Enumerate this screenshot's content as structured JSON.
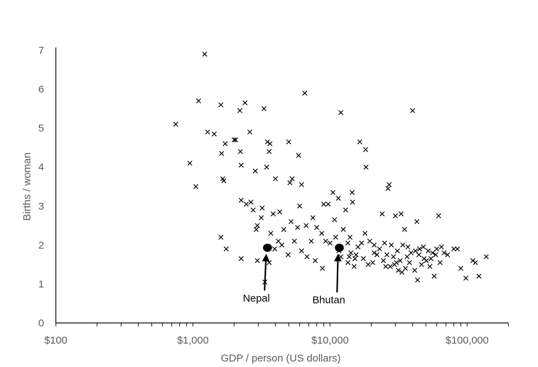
{
  "chart_data": {
    "type": "scatter",
    "title": "",
    "xlabel": "GDP / person (US dollars)",
    "ylabel": "Births / woman",
    "x_scale": "log",
    "xlim": [
      100,
      200000
    ],
    "ylim": [
      0,
      7
    ],
    "x_ticks": [
      {
        "value": 100,
        "label": "$100"
      },
      {
        "value": 1000,
        "label": "$1,000"
      },
      {
        "value": 10000,
        "label": "$10,000"
      },
      {
        "value": 100000,
        "label": "$100,000"
      }
    ],
    "y_ticks": [
      {
        "value": 0,
        "label": "0"
      },
      {
        "value": 1,
        "label": "1"
      },
      {
        "value": 2,
        "label": "2"
      },
      {
        "value": 3,
        "label": "3"
      },
      {
        "value": 4,
        "label": "4"
      },
      {
        "value": 5,
        "label": "5"
      },
      {
        "value": 6,
        "label": "6"
      },
      {
        "value": 7,
        "label": "7"
      }
    ],
    "grid": false,
    "legend": "none",
    "marker_color": "#000000",
    "axis_color": "#000000",
    "label_color": "#595959",
    "points": [
      [
        750,
        5.1
      ],
      [
        950,
        4.1
      ],
      [
        1050,
        3.5
      ],
      [
        1100,
        5.7
      ],
      [
        1220,
        6.9
      ],
      [
        1280,
        4.9
      ],
      [
        1430,
        4.85
      ],
      [
        1600,
        5.6
      ],
      [
        1620,
        4.35
      ],
      [
        1650,
        3.7
      ],
      [
        1680,
        3.65
      ],
      [
        1720,
        4.6
      ],
      [
        2000,
        4.7
      ],
      [
        2050,
        4.7
      ],
      [
        2200,
        5.45
      ],
      [
        2220,
        4.4
      ],
      [
        2250,
        4.05
      ],
      [
        2400,
        5.65
      ],
      [
        2600,
        4.9
      ],
      [
        2850,
        3.9
      ],
      [
        2950,
        2.5
      ],
      [
        3150,
        2.7
      ],
      [
        3300,
        5.5
      ],
      [
        3450,
        4.0
      ],
      [
        3500,
        4.65
      ],
      [
        3600,
        4.4
      ],
      [
        3650,
        4.6
      ],
      [
        3850,
        2.8
      ],
      [
        4000,
        3.7
      ],
      [
        4300,
        2.85
      ],
      [
        5000,
        4.65
      ],
      [
        5100,
        3.6
      ],
      [
        5300,
        3.7
      ],
      [
        5900,
        4.3
      ],
      [
        6200,
        3.55
      ],
      [
        6000,
        3.0
      ],
      [
        6550,
        5.9
      ],
      [
        7500,
        2.7
      ],
      [
        9000,
        3.05
      ],
      [
        9700,
        3.05
      ],
      [
        10500,
        3.35
      ],
      [
        10800,
        2.65
      ],
      [
        11500,
        3.2
      ],
      [
        12000,
        5.4
      ],
      [
        13000,
        2.9
      ],
      [
        14500,
        3.35
      ],
      [
        14600,
        3.1
      ],
      [
        16500,
        4.65
      ],
      [
        18200,
        4.45
      ],
      [
        18300,
        4.0
      ],
      [
        24000,
        2.8
      ],
      [
        27000,
        3.55
      ],
      [
        26500,
        3.45
      ],
      [
        30000,
        2.75
      ],
      [
        33000,
        2.8
      ],
      [
        35000,
        2.4
      ],
      [
        40000,
        5.45
      ],
      [
        43000,
        2.6
      ],
      [
        62000,
        2.75
      ],
      [
        2250,
        3.15
      ],
      [
        2450,
        3.05
      ],
      [
        2650,
        3.1
      ],
      [
        2750,
        2.9
      ],
      [
        3200,
        2.95
      ],
      [
        2900,
        2.4
      ],
      [
        3700,
        2.3
      ],
      [
        4200,
        2.1
      ],
      [
        4600,
        2.4
      ],
      [
        5200,
        2.6
      ],
      [
        5500,
        2.1
      ],
      [
        5800,
        2.45
      ],
      [
        6700,
        2.5
      ],
      [
        7300,
        2.1
      ],
      [
        8000,
        2.45
      ],
      [
        8700,
        2.3
      ],
      [
        9300,
        2.1
      ],
      [
        10000,
        2.05
      ],
      [
        11000,
        2.2
      ],
      [
        12500,
        2.4
      ],
      [
        13500,
        2.05
      ],
      [
        14000,
        2.2
      ],
      [
        16000,
        1.95
      ],
      [
        17000,
        2.05
      ],
      [
        18000,
        2.3
      ],
      [
        19500,
        2.1
      ],
      [
        21000,
        2.0
      ],
      [
        23000,
        1.9
      ],
      [
        25000,
        2.05
      ],
      [
        28000,
        2.0
      ],
      [
        31000,
        1.85
      ],
      [
        34000,
        2.0
      ],
      [
        37000,
        1.95
      ],
      [
        39000,
        1.8
      ],
      [
        42000,
        1.85
      ],
      [
        45000,
        1.9
      ],
      [
        48000,
        1.95
      ],
      [
        52000,
        1.85
      ],
      [
        56000,
        1.8
      ],
      [
        60000,
        1.9
      ],
      [
        65000,
        1.95
      ],
      [
        72000,
        1.75
      ],
      [
        80000,
        1.9
      ],
      [
        85000,
        1.9
      ],
      [
        90000,
        1.4
      ],
      [
        98000,
        1.15
      ],
      [
        110000,
        1.6
      ],
      [
        115000,
        1.55
      ],
      [
        122000,
        1.2
      ],
      [
        138000,
        1.7
      ],
      [
        1600,
        2.2
      ],
      [
        1750,
        1.9
      ],
      [
        2250,
        1.65
      ],
      [
        2950,
        1.6
      ],
      [
        3350,
        1.05
      ],
      [
        3600,
        1.55
      ],
      [
        3950,
        1.9
      ],
      [
        4450,
        2.0
      ],
      [
        4950,
        1.75
      ],
      [
        6200,
        1.85
      ],
      [
        6800,
        1.7
      ],
      [
        7800,
        1.6
      ],
      [
        8800,
        1.4
      ],
      [
        12000,
        1.7
      ],
      [
        13500,
        1.55
      ],
      [
        15000,
        1.45
      ],
      [
        15500,
        1.75
      ],
      [
        17500,
        1.65
      ],
      [
        19000,
        1.5
      ],
      [
        20500,
        1.55
      ],
      [
        22000,
        1.75
      ],
      [
        24500,
        1.6
      ],
      [
        27500,
        1.45
      ],
      [
        29500,
        1.5
      ],
      [
        31500,
        1.35
      ],
      [
        33500,
        1.3
      ],
      [
        35500,
        1.4
      ],
      [
        38000,
        1.55
      ],
      [
        41500,
        1.35
      ],
      [
        43500,
        1.1
      ],
      [
        46500,
        1.5
      ],
      [
        50500,
        1.6
      ],
      [
        54500,
        1.65
      ],
      [
        57500,
        1.2
      ],
      [
        63500,
        1.55
      ],
      [
        68000,
        1.8
      ],
      [
        21000,
        1.8
      ],
      [
        26000,
        1.75
      ],
      [
        29000,
        1.7
      ],
      [
        32500,
        1.6
      ],
      [
        36500,
        1.7
      ],
      [
        44500,
        1.75
      ],
      [
        48500,
        1.65
      ],
      [
        53500,
        1.45
      ],
      [
        59000,
        1.75
      ],
      [
        30500,
        1.55
      ],
      [
        13800,
        1.7
      ],
      [
        15200,
        1.65
      ],
      [
        11600,
        1.85
      ],
      [
        14200,
        1.8
      ],
      [
        25500,
        1.45
      ]
    ],
    "highlights": [
      {
        "label": "Nepal",
        "x": 3500,
        "y": 1.93,
        "label_x": 2900,
        "label_y": 0.55
      },
      {
        "label": "Bhutan",
        "x": 11700,
        "y": 1.93,
        "label_x": 9800,
        "label_y": 0.5
      }
    ]
  }
}
